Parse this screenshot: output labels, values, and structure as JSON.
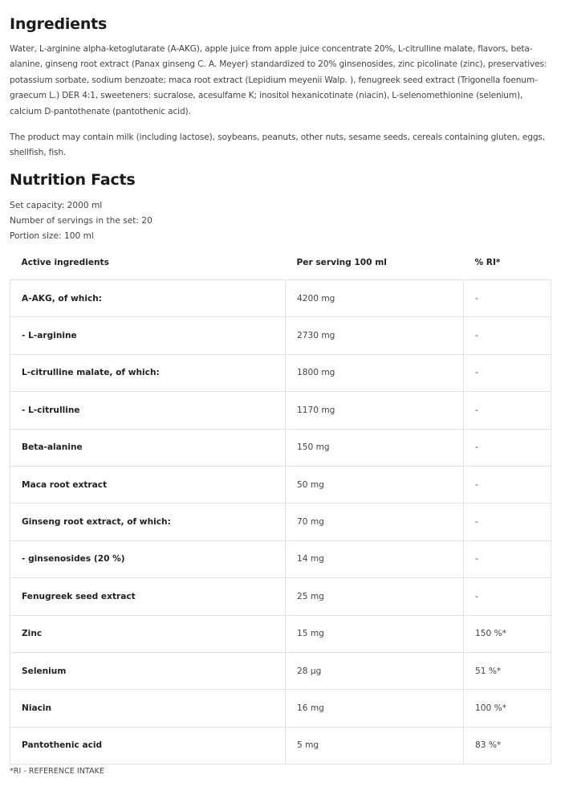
{
  "ingredients": {
    "title": "Ingredients",
    "text": "Water, L-arginine alpha-ketoglutarate (A-AKG), apple juice from apple juice concentrate 20%, L-citrulline malate, flavors, beta-alanine, ginseng root extract (Panax ginseng C. A. Meyer) standardized to 20% ginsenosides, zinc picolinate (zinc), preservatives: potassium sorbate, sodium benzoate; maca root extract (Lepidium meyenii Walp. ), fenugreek seed extract (Trigonella foenum-graecum L.) DER 4:1, sweeteners: sucralose, acesulfame K; inositol hexanicotinate (niacin), L-selenomethionine (selenium), calcium D-pantothenate (pantothenic acid).",
    "allergens": "The product may contain milk (including lactose), soybeans, peanuts, other nuts, sesame seeds, cereals containing gluten, eggs, shellfish, fish."
  },
  "nutrition": {
    "title": "Nutrition Facts",
    "set_capacity": "Set capacity: 2000 ml",
    "servings": "Number of servings in the set: 20",
    "portion": "Portion size: 100 ml",
    "headers": [
      "Active ingredients",
      "Per serving 100 ml",
      "% RI*"
    ],
    "rows": [
      [
        "A-AKG, of which:",
        "4200 mg",
        "-"
      ],
      [
        "- L-arginine",
        "2730 mg",
        "-"
      ],
      [
        "L-citrulline malate, of which:",
        "1800 mg",
        "-"
      ],
      [
        "- L-citrulline",
        "1170 mg",
        "-"
      ],
      [
        "Beta-alanine",
        "150 mg",
        "-"
      ],
      [
        "Maca root extract",
        "50 mg",
        "-"
      ],
      [
        "Ginseng root extract, of which:",
        "70 mg",
        "-"
      ],
      [
        "- ginsenosides (20 %)",
        "14 mg",
        "-"
      ],
      [
        "Fenugreek seed extract",
        "25 mg",
        "-"
      ],
      [
        "Zinc",
        "15 mg",
        "150 %*"
      ],
      [
        "Selenium",
        "28 µg",
        "51 %*"
      ],
      [
        "Niacin",
        "16 mg",
        "100 %*"
      ],
      [
        "Pantothenic acid",
        "5 mg",
        "83 %*"
      ]
    ],
    "footnote": "*RI - REFERENCE INTAKE"
  }
}
